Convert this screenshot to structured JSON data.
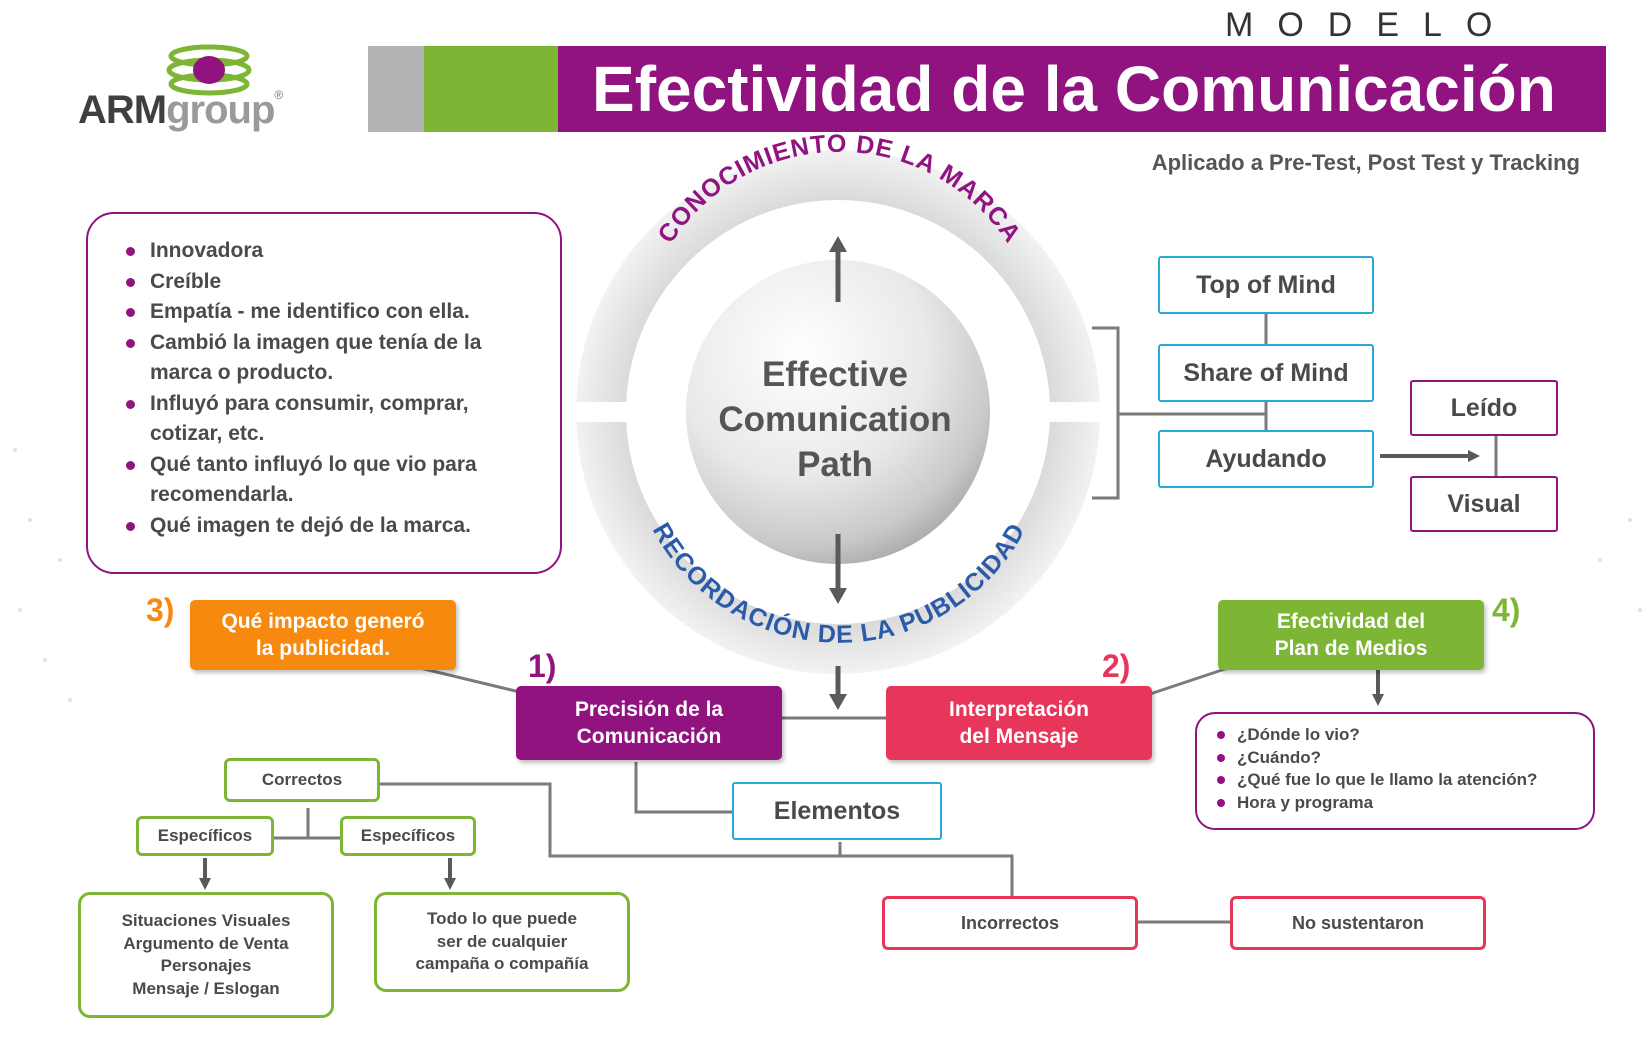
{
  "logo": {
    "arm": "ARM",
    "group": "group",
    "reg": "®"
  },
  "header": {
    "modelo": "MODELO",
    "title": "Efectividad de la Comunicación",
    "subtitle": "Aplicado a Pre-Test, Post Test y Tracking"
  },
  "attributes": [
    "Innovadora",
    "Creíble",
    "Empatía - me identifico con ella.",
    "Cambió la imagen que tenía de la marca o producto.",
    "Influyó para consumir, comprar, cotizar, etc.",
    "Qué tanto influyó lo que vio para recomendarla.",
    "Qué imagen te dejó de la marca."
  ],
  "circle": {
    "top_label": "CONOCIMIENTO DE LA MARCA",
    "bottom_label": "RECORDACIÓN DE LA PUBLICIDAD",
    "center": [
      "Effective",
      "Comunication",
      "Path"
    ]
  },
  "recall": {
    "top_of_mind": "Top of Mind",
    "share_of_mind": "Share of Mind",
    "ayudando": "Ayudando",
    "leido": "Leído",
    "visual": "Visual"
  },
  "steps": {
    "n1": "1)",
    "s1": [
      "Precisión de la",
      "Comunicación"
    ],
    "n2": "2)",
    "s2": [
      "Interpretación",
      "del Mensaje"
    ],
    "n3": "3)",
    "s3": [
      "Qué impacto generó",
      "la publicidad."
    ],
    "n4": "4)",
    "s4": [
      "Efectividad del",
      "Plan de Medios"
    ]
  },
  "media_questions": [
    "¿Dónde lo vio?",
    "¿Cuándo?",
    "¿Qué fue lo que le llamo la atención?",
    "Hora y programa"
  ],
  "elements": {
    "elementos": "Elementos",
    "correctos": "Correctos",
    "especificos_left": "Específicos",
    "especificos_right": "Específicos",
    "left_detail": [
      "Situaciones Visuales",
      "Argumento de Venta",
      "Personajes",
      "Mensaje / Eslogan"
    ],
    "right_detail": [
      "Todo lo que puede",
      "ser de cualquier",
      "campaña o compañía"
    ],
    "incorrectos": "Incorrectos",
    "no_sustentaron": "No sustentaron"
  },
  "colors": {
    "purple": "#90137f",
    "green": "#7db535",
    "orange": "#f7890f",
    "red": "#e8355a",
    "blue": "#2aa8d8",
    "gray": "#b3b3b3"
  }
}
